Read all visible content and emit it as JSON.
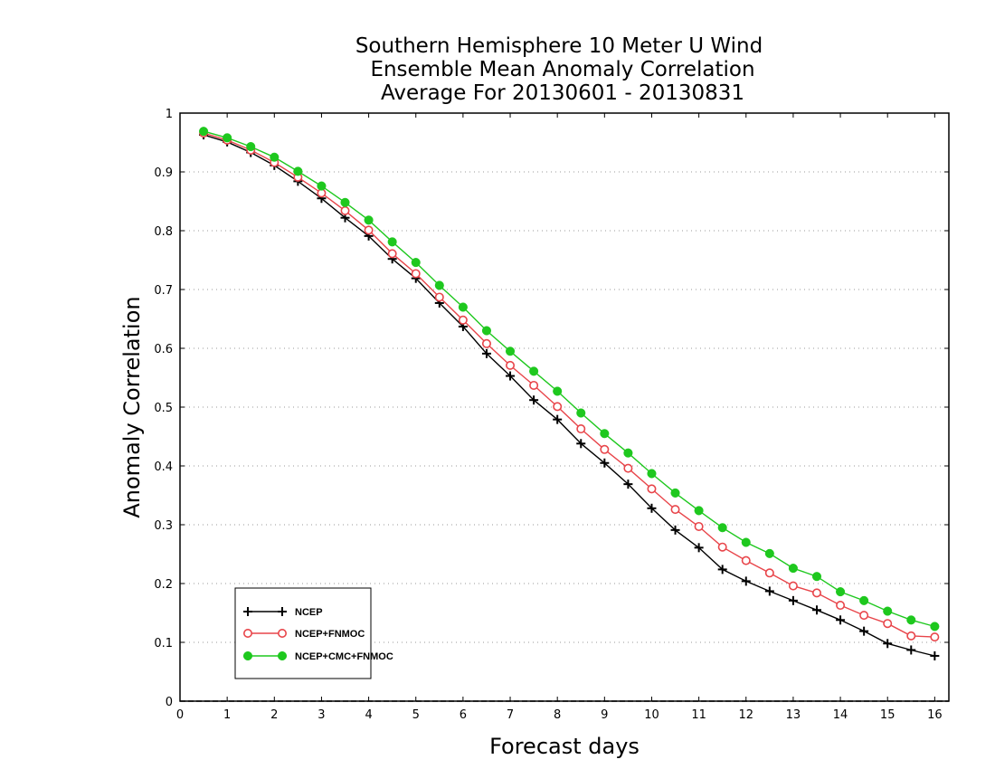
{
  "chart_data": {
    "type": "line",
    "title_lines": [
      "Southern Hemisphere 10 Meter U Wind",
      "Ensemble Mean Anomaly Correlation",
      "Average For 20130601 - 20130831"
    ],
    "xlabel": "Forecast days",
    "ylabel": "Anomaly Correlation",
    "xlim": [
      0,
      16.3
    ],
    "ylim": [
      0,
      1
    ],
    "xticks": [
      0,
      1,
      2,
      3,
      4,
      5,
      6,
      7,
      8,
      9,
      10,
      11,
      12,
      13,
      14,
      15,
      16
    ],
    "yticks": [
      0,
      0.1,
      0.2,
      0.3,
      0.4,
      0.5,
      0.6,
      0.7,
      0.8,
      0.9,
      1
    ],
    "ytick_labels": [
      "0",
      "0.1",
      "0.2",
      "0.3",
      "0.4",
      "0.5",
      "0.6",
      "0.7",
      "0.8",
      "0.9",
      "1"
    ],
    "grid": "horizontal-dotted",
    "legend_position": "bottom-left",
    "x": [
      0.5,
      1,
      1.5,
      2,
      2.5,
      3,
      3.5,
      4,
      4.5,
      5,
      5.5,
      6,
      6.5,
      7,
      7.5,
      8,
      8.5,
      9,
      9.5,
      10,
      10.5,
      11,
      11.5,
      12,
      12.5,
      13,
      13.5,
      14,
      14.5,
      15,
      15.5,
      16
    ],
    "series": [
      {
        "name": "NCEP",
        "color": "#000000",
        "marker": "plus",
        "values": [
          0.963,
          0.951,
          0.933,
          0.911,
          0.884,
          0.855,
          0.822,
          0.791,
          0.752,
          0.719,
          0.677,
          0.637,
          0.591,
          0.553,
          0.512,
          0.479,
          0.438,
          0.405,
          0.369,
          0.328,
          0.291,
          0.261,
          0.224,
          0.204,
          0.187,
          0.171,
          0.155,
          0.138,
          0.119,
          0.098,
          0.087,
          0.077
        ]
      },
      {
        "name": "NCEP+FNMOC",
        "color": "#e8454a",
        "marker": "open-circle",
        "values": [
          0.966,
          0.954,
          0.937,
          0.916,
          0.891,
          0.864,
          0.834,
          0.801,
          0.761,
          0.727,
          0.687,
          0.648,
          0.608,
          0.571,
          0.537,
          0.501,
          0.463,
          0.428,
          0.396,
          0.361,
          0.326,
          0.297,
          0.262,
          0.239,
          0.218,
          0.196,
          0.184,
          0.163,
          0.146,
          0.132,
          0.111,
          0.109
        ]
      },
      {
        "name": "NCEP+CMC+FNMOC",
        "color": "#1ec81e",
        "marker": "filled-circle",
        "values": [
          0.969,
          0.958,
          0.943,
          0.925,
          0.901,
          0.876,
          0.848,
          0.818,
          0.781,
          0.746,
          0.707,
          0.67,
          0.63,
          0.595,
          0.561,
          0.527,
          0.49,
          0.455,
          0.422,
          0.387,
          0.354,
          0.324,
          0.295,
          0.27,
          0.251,
          0.226,
          0.212,
          0.186,
          0.171,
          0.153,
          0.138,
          0.127
        ]
      }
    ]
  }
}
